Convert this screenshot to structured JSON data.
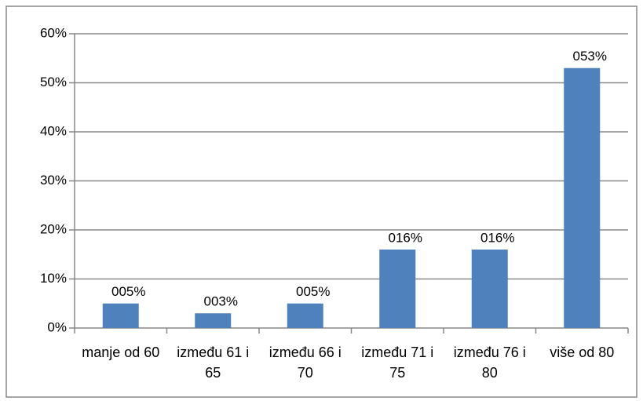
{
  "chart_data": {
    "type": "bar",
    "categories": [
      "manje od 60",
      "između 61 i 65",
      "između 66 i 70",
      "između 71 i 75",
      "između 76 i 80",
      "više od 80"
    ],
    "values": [
      5,
      3,
      5,
      16,
      16,
      53
    ],
    "value_labels": [
      "005%",
      "003%",
      "005%",
      "016%",
      "016%",
      "053%"
    ],
    "color": "#4f81bd",
    "ylim": [
      0,
      60
    ],
    "yticks": [
      {
        "value": 0,
        "label": "0%"
      },
      {
        "value": 10,
        "label": "10%"
      },
      {
        "value": 20,
        "label": "20%"
      },
      {
        "value": 30,
        "label": "30%"
      },
      {
        "value": 40,
        "label": "40%"
      },
      {
        "value": 50,
        "label": "50%"
      },
      {
        "value": 60,
        "label": "60%"
      }
    ],
    "grid": true
  }
}
